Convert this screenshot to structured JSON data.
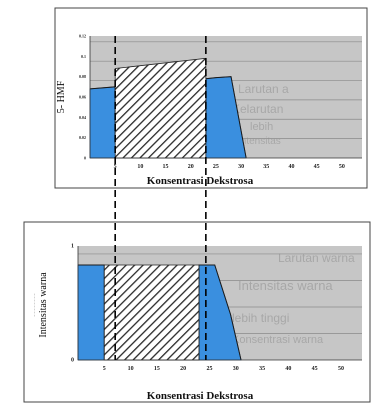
{
  "chart_data": [
    {
      "type": "area",
      "ylabel": "5- HMF",
      "xlabel": "Konsentrasi Dekstrosa",
      "x_ticks": [
        "5",
        "10",
        "15",
        "20",
        "25",
        "30",
        "35",
        "40",
        "45",
        "50"
      ],
      "y_ticks": [
        "0.12",
        "0.1",
        "0.08",
        "0.06",
        "0.04",
        "0.02",
        "0"
      ],
      "xlim": [
        0,
        54
      ],
      "ylim": [
        0,
        0.12
      ],
      "grid": true,
      "series": [
        {
          "color": "#3a8fdf",
          "points": [
            [
              0,
              0.068
            ],
            [
              5,
              0.07
            ],
            [
              5,
              0.015
            ],
            [
              23,
              0.015
            ],
            [
              23,
              0.078
            ],
            [
              25,
              0.079
            ],
            [
              28,
              0.08
            ],
            [
              31,
              0.0
            ]
          ]
        }
      ],
      "hatched_range": [
        5,
        23
      ],
      "hatched_top": [
        0.088,
        0.098
      ],
      "dashed_guides_x": [
        5,
        23
      ]
    },
    {
      "type": "area",
      "ylabel": "Intensitas warna",
      "xlabel": "Konsentrasi Dekstrosa",
      "x_ticks": [
        "5",
        "10",
        "15",
        "20",
        "25",
        "30",
        "35",
        "40",
        "45",
        "50"
      ],
      "y_ticks": [
        "1",
        "0"
      ],
      "xlim": [
        0,
        54
      ],
      "ylim": [
        0,
        1.2
      ],
      "grid": true,
      "series": [
        {
          "color": "#3a8fdf",
          "points": [
            [
              0,
              1
            ],
            [
              5,
              1
            ],
            [
              5,
              0
            ],
            [
              23,
              0
            ],
            [
              23,
              1
            ],
            [
              26,
              1
            ],
            [
              29,
              0.48
            ],
            [
              31,
              0
            ]
          ]
        }
      ],
      "hatched_range": [
        5,
        23
      ],
      "hatched_top": [
        1.0,
        1.0
      ],
      "dashed_guides_x": [
        5,
        23
      ]
    }
  ],
  "background_text": {
    "top": [
      "Larutan a",
      "Kelarutan",
      "lebih",
      "Intensitas"
    ],
    "bottom": [
      "Larutan warna",
      "Intensitas warna",
      "lebih tinggi",
      "Konsentrasi warna"
    ]
  }
}
